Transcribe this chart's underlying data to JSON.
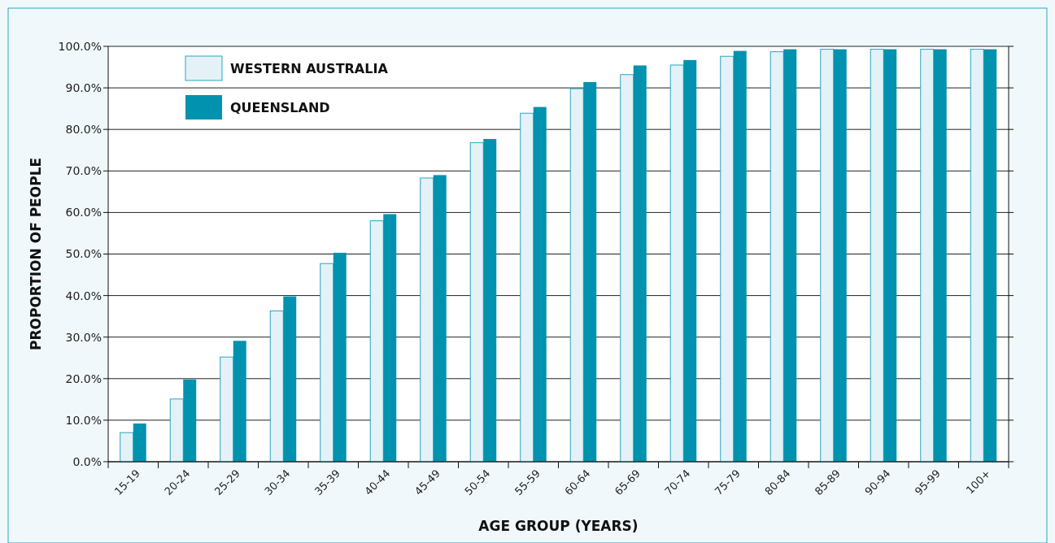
{
  "chart_data": {
    "type": "bar",
    "xlabel": "AGE GROUP (YEARS)",
    "ylabel": "PROPORTION OF PEOPLE",
    "categories": [
      "15-19",
      "20-24",
      "25-29",
      "30-34",
      "35-39",
      "40-44",
      "45-49",
      "50-54",
      "55-59",
      "60-64",
      "65-69",
      "70-74",
      "75-79",
      "80-84",
      "85-89",
      "90-94",
      "95-99",
      "100+"
    ],
    "series": [
      {
        "name": "WESTERN AUSTRALIA",
        "color": "#e4f1f6",
        "values": [
          7.0,
          15.1,
          25.2,
          36.3,
          47.7,
          58.0,
          68.3,
          76.8,
          83.9,
          89.8,
          93.2,
          95.5,
          97.6,
          98.7,
          99.3,
          99.3,
          99.3,
          99.3
        ]
      },
      {
        "name": "QUEENSLAND",
        "color": "#0092ae",
        "values": [
          9.2,
          19.8,
          29.1,
          39.8,
          50.3,
          59.6,
          69.0,
          77.7,
          85.4,
          91.4,
          95.4,
          96.7,
          98.9,
          99.3,
          99.3,
          99.3,
          99.3,
          99.3
        ]
      }
    ],
    "ylim": [
      0,
      100
    ],
    "yticks": [
      {
        "value": 0,
        "label": "0.0%"
      },
      {
        "value": 10,
        "label": "10.0%"
      },
      {
        "value": 20,
        "label": "20.0%"
      },
      {
        "value": 30,
        "label": "30.0%"
      },
      {
        "value": 40,
        "label": "40.0%"
      },
      {
        "value": 50,
        "label": "50.0%"
      },
      {
        "value": 60,
        "label": "60.0%"
      },
      {
        "value": 70,
        "label": "70.0%"
      },
      {
        "value": 80,
        "label": "80.0%"
      },
      {
        "value": 90,
        "label": "90.0%"
      },
      {
        "value": 100,
        "label": "100.0%"
      }
    ],
    "grid": "y",
    "legend": "top left"
  }
}
